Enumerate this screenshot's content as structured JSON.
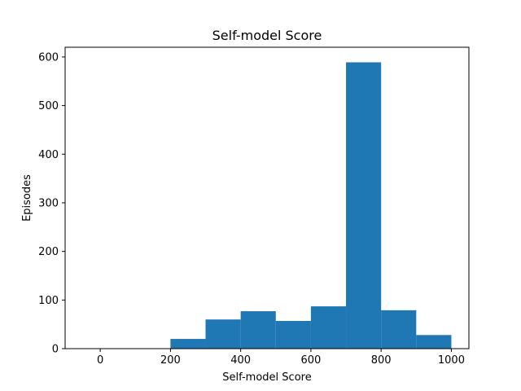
{
  "chart_data": {
    "type": "bar",
    "title": "Self-model Score",
    "xlabel": "Self-model Score",
    "ylabel": "Episodes",
    "xlim": [
      -100,
      1050
    ],
    "ylim": [
      0,
      620
    ],
    "xticks": [
      0,
      200,
      400,
      600,
      800,
      1000
    ],
    "yticks": [
      0,
      100,
      200,
      300,
      400,
      500,
      600
    ],
    "bins": [
      {
        "x0": 200,
        "x1": 300,
        "value": 20
      },
      {
        "x0": 300,
        "x1": 400,
        "value": 60
      },
      {
        "x0": 400,
        "x1": 500,
        "value": 77
      },
      {
        "x0": 500,
        "x1": 600,
        "value": 57
      },
      {
        "x0": 600,
        "x1": 700,
        "value": 87
      },
      {
        "x0": 700,
        "x1": 800,
        "value": 589
      },
      {
        "x0": 800,
        "x1": 900,
        "value": 79
      },
      {
        "x0": 900,
        "x1": 1000,
        "value": 28
      }
    ],
    "bar_color": "#1f77b4",
    "grid": false
  }
}
